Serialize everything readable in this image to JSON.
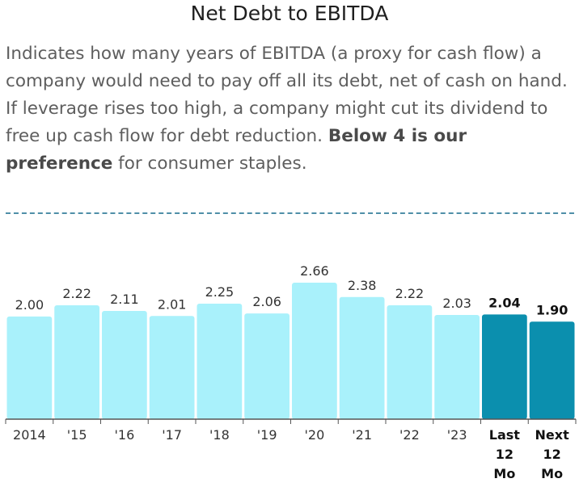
{
  "header": {
    "title": "Net Debt to EBITDA",
    "desc_before": "Indicates how many years of EBITDA (a proxy for cash flow) a company would need to pay off all its debt, net of cash on hand. If leverage rises too high, a company might cut its dividend to free up cash flow for debt reduction. ",
    "desc_bold": "Below 4 is our preference",
    "desc_after": " for consumer staples."
  },
  "colors": {
    "historical_bar": "#a9f1fb",
    "highlight_bar": "#0b8fae",
    "axis": "#555555",
    "divider": "#4f8fa8"
  },
  "chart_data": {
    "type": "bar",
    "categories": [
      "2014",
      "'15",
      "'16",
      "'17",
      "'18",
      "'19",
      "'20",
      "'21",
      "'22",
      "'23",
      "Last 12 Mo",
      "Next 12 Mo"
    ],
    "category_lines": [
      [
        "2014"
      ],
      [
        "'15"
      ],
      [
        "'16"
      ],
      [
        "'17"
      ],
      [
        "'18"
      ],
      [
        "'19"
      ],
      [
        "'20"
      ],
      [
        "'21"
      ],
      [
        "'22"
      ],
      [
        "'23"
      ],
      [
        "Last",
        "12",
        "Mo"
      ],
      [
        "Next",
        "12",
        "Mo"
      ]
    ],
    "values": [
      2.0,
      2.22,
      2.11,
      2.01,
      2.25,
      2.06,
      2.66,
      2.38,
      2.22,
      2.03,
      2.04,
      1.9
    ],
    "value_labels": [
      "2.00",
      "2.22",
      "2.11",
      "2.01",
      "2.25",
      "2.06",
      "2.66",
      "2.38",
      "2.22",
      "2.03",
      "2.04",
      "1.90"
    ],
    "highlighted": [
      false,
      false,
      false,
      false,
      false,
      false,
      false,
      false,
      false,
      false,
      true,
      true
    ],
    "ylim": [
      0,
      2.66
    ],
    "title": "",
    "xlabel": "",
    "ylabel": "",
    "grid": false,
    "legend": "none"
  }
}
